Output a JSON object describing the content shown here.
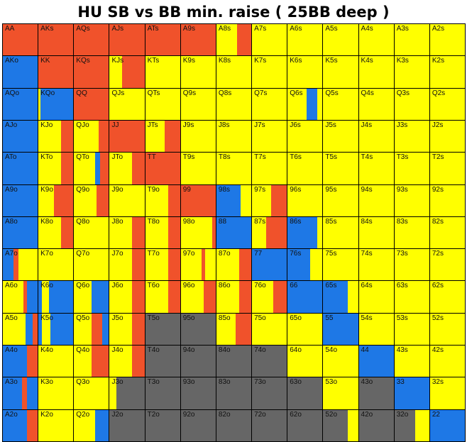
{
  "title": "HU SB vs BB min. raise ( 25BB deep )",
  "colors": {
    "raise": "#f0522b",
    "call": "#ffff00",
    "allin": "#1e78e6",
    "fold": "#666666"
  },
  "legend_keys": [
    "raise",
    "call",
    "allin",
    "fold"
  ],
  "rows": [
    [
      "AA",
      "AKs",
      "AQs",
      "AJs",
      "ATs",
      "A9s",
      "A8s",
      "A7s",
      "A6s",
      "A5s",
      "A4s",
      "A3s",
      "A2s"
    ],
    [
      "AKo",
      "KK",
      "KQs",
      "KJs",
      "KTs",
      "K9s",
      "K8s",
      "K7s",
      "K6s",
      "K5s",
      "K4s",
      "K3s",
      "K2s"
    ],
    [
      "AQo",
      "KQo",
      "QQ",
      "QJs",
      "QTs",
      "Q9s",
      "Q8s",
      "Q7s",
      "Q6s",
      "Q5s",
      "Q4s",
      "Q3s",
      "Q2s"
    ],
    [
      "AJo",
      "KJo",
      "QJo",
      "JJ",
      "JTs",
      "J9s",
      "J8s",
      "J7s",
      "J6s",
      "J5s",
      "J4s",
      "J3s",
      "J2s"
    ],
    [
      "ATo",
      "KTo",
      "QTo",
      "JTo",
      "TT",
      "T9s",
      "T8s",
      "T7s",
      "T6s",
      "T5s",
      "T4s",
      "T3s",
      "T2s"
    ],
    [
      "A9o",
      "K9o",
      "Q9o",
      "J9o",
      "T9o",
      "99",
      "98s",
      "97s",
      "96s",
      "95s",
      "94s",
      "93s",
      "92s"
    ],
    [
      "A8o",
      "K8o",
      "Q8o",
      "J8o",
      "T8o",
      "98o",
      "88",
      "87s",
      "86s",
      "85s",
      "84s",
      "83s",
      "82s"
    ],
    [
      "A7o",
      "K7o",
      "Q7o",
      "J7o",
      "T7o",
      "97o",
      "87o",
      "77",
      "76s",
      "75s",
      "74s",
      "73s",
      "72s"
    ],
    [
      "A6o",
      "K6o",
      "Q6o",
      "J6o",
      "T6o",
      "96o",
      "86o",
      "76o",
      "66",
      "65s",
      "64s",
      "63s",
      "62s"
    ],
    [
      "A5o",
      "K5o",
      "Q5o",
      "J5o",
      "T5o",
      "95o",
      "85o",
      "75o",
      "65o",
      "55",
      "54s",
      "53s",
      "52s"
    ],
    [
      "A4o",
      "K4o",
      "Q4o",
      "J4o",
      "T4o",
      "94o",
      "84o",
      "74o",
      "64o",
      "54o",
      "44",
      "43s",
      "42s"
    ],
    [
      "A3o",
      "K3o",
      "Q3o",
      "J3o",
      "T3o",
      "93o",
      "83o",
      "73o",
      "63o",
      "53o",
      "43o",
      "33",
      "32s"
    ],
    [
      "A2o",
      "K2o",
      "Q2o",
      "J2o",
      "T2o",
      "92o",
      "82o",
      "72o",
      "62o",
      "52o",
      "42o",
      "32o",
      "22"
    ]
  ],
  "mix": [
    [
      "R",
      "R",
      "R",
      "R",
      "R",
      "R",
      "C:0.6 R:0.4",
      "C",
      "C",
      "C",
      "C",
      "C",
      "C"
    ],
    [
      "A",
      "R",
      "R",
      "C:0.35 R:0.65",
      "C",
      "C",
      "C",
      "C",
      "C",
      "C",
      "C",
      "C",
      "C"
    ],
    [
      "A",
      "C:0.05 A:0.95",
      "R",
      "C",
      "C",
      "C",
      "C",
      "C",
      "C:0.55 A:0.3 C:0.15",
      "C",
      "C",
      "C",
      "C"
    ],
    [
      "A",
      "C:0.65 R:0.35",
      "C:0.7 R:0.3",
      "R",
      "C:0.55 R:0.45",
      "C",
      "C",
      "C",
      "C",
      "C",
      "C",
      "C",
      "C"
    ],
    [
      "A",
      "C:0.65 R:0.35",
      "C:0.6 A:0.15 R:0.25",
      "C:0.65 R:0.35",
      "R",
      "C",
      "C",
      "C",
      "C",
      "C",
      "C",
      "C",
      "C"
    ],
    [
      "A",
      "C:0.45 R:0.55",
      "C:0.65 R:0.35",
      "C",
      "C:0.65 R:0.35",
      "R",
      "A:0.7 C:0.3",
      "C:0.55 R:0.45",
      "C",
      "C",
      "C",
      "C",
      "C"
    ],
    [
      "A",
      "C:0.65 R:0.35",
      "C",
      "C:0.65 R:0.35",
      "C:0.65 R:0.35",
      "C:0.9 R:0.1",
      "A",
      "C:0.4 R:0.6",
      "A:0.85 C:0.15",
      "C",
      "C",
      "C",
      "C"
    ],
    [
      "A:0.3 R:0.15 C:0.55",
      "C",
      "C",
      "C:0.65 R:0.35",
      "C:0.65 R:0.35",
      "C:0.6 R:0.1 C:0.3",
      "C:0.65 R:0.35",
      "A",
      "A:0.65 C:0.35",
      "C",
      "C",
      "C",
      "C"
    ],
    [
      "C:0.6 R:0.1 A:0.3",
      "A:0.1 C:0.2 A:0.7",
      "C:0.5 A:0.5",
      "C:0.65 R:0.35",
      "C:0.65 R:0.35",
      "C:0.65 R:0.35",
      "C:0.65 R:0.35",
      "C:0.6 R:0.4",
      "A",
      "A:0.7 C:0.3",
      "C",
      "C",
      "C"
    ],
    [
      "C:0.65 A:0.2 R:0.15",
      "A:0.1 C:0.25 A:0.65",
      "C:0.5 R:0.3 A:0.2",
      "C:0.65 R:0.35",
      "F",
      "F",
      "C:0.55 R:0.45",
      "C",
      "C",
      "A",
      "C",
      "C",
      "C"
    ],
    [
      "A:0.7 R:0.3",
      "C",
      "C:0.5 R:0.5",
      "C:0.65 R:0.35",
      "F",
      "F",
      "F",
      "F",
      "C",
      "C",
      "A",
      "C",
      "C"
    ],
    [
      "A:0.55 R:0.15 A:0.3",
      "C",
      "C",
      "C:0.2 F:0.8",
      "F",
      "F",
      "F",
      "F",
      "F",
      "C",
      "F",
      "A",
      "C"
    ],
    [
      "A:0.7 R:0.3",
      "C",
      "C:0.6 A:0.4",
      "F",
      "F",
      "F",
      "F",
      "F",
      "F",
      "F:0.7 C:0.3",
      "F",
      "F:0.6 C:0.4",
      "A"
    ]
  ]
}
